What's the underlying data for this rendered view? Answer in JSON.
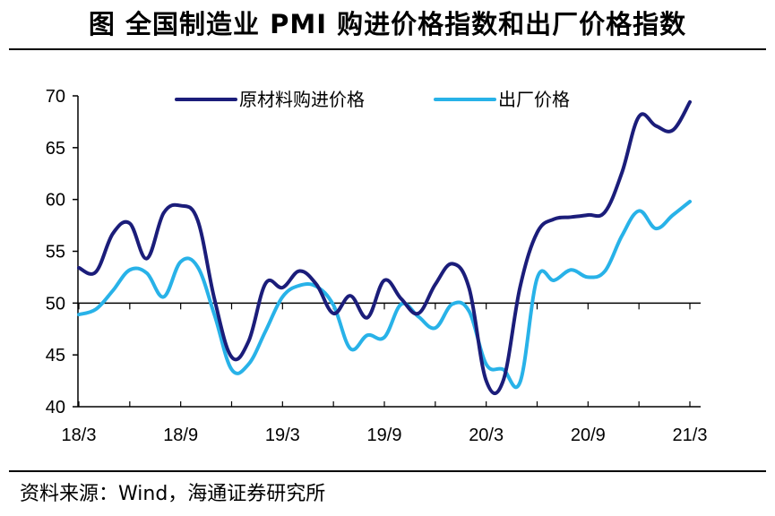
{
  "title": "图  全国制造业 PMI 购进价格指数和出厂价格指数",
  "source": "资料来源：Wind，海通证券研究所",
  "chart_data": {
    "type": "line",
    "title": "图  全国制造业 PMI 购进价格指数和出厂价格指数",
    "xlabel": "",
    "ylabel": "",
    "ylim": [
      40,
      70
    ],
    "yticks": [
      40,
      45,
      50,
      55,
      60,
      65,
      70
    ],
    "x_tick_labels": [
      "18/3",
      "18/9",
      "19/3",
      "19/9",
      "20/3",
      "20/9",
      "21/3"
    ],
    "x": [
      "18/3",
      "18/4",
      "18/5",
      "18/6",
      "18/7",
      "18/8",
      "18/9",
      "18/10",
      "18/11",
      "18/12",
      "19/1",
      "19/2",
      "19/3",
      "19/4",
      "19/5",
      "19/6",
      "19/7",
      "19/8",
      "19/9",
      "19/10",
      "19/11",
      "19/12",
      "20/1",
      "20/2",
      "20/3",
      "20/4",
      "20/5",
      "20/6",
      "20/7",
      "20/8",
      "20/9",
      "20/10",
      "20/11",
      "20/12",
      "21/1",
      "21/2",
      "21/3"
    ],
    "reference_line": 50,
    "legend_position": "top",
    "series": [
      {
        "name": "原材料购进价格",
        "color": "#1b1d7a",
        "values": [
          53.4,
          53.0,
          56.7,
          57.7,
          54.3,
          58.7,
          59.4,
          58.0,
          50.3,
          44.8,
          46.3,
          51.9,
          51.5,
          53.1,
          51.8,
          49.0,
          50.7,
          48.6,
          52.2,
          50.4,
          49.0,
          51.8,
          53.8,
          51.4,
          42.5,
          42.5,
          51.6,
          56.8,
          58.1,
          58.3,
          58.5,
          58.8,
          62.6,
          68.0,
          67.1,
          66.7,
          69.4
        ]
      },
      {
        "name": "出厂价格",
        "color": "#28b2e8",
        "values": [
          48.9,
          49.4,
          51.2,
          53.2,
          52.9,
          50.6,
          54.0,
          53.5,
          48.8,
          43.6,
          44.1,
          47.3,
          50.6,
          51.7,
          51.6,
          49.8,
          45.6,
          46.9,
          46.7,
          49.9,
          48.7,
          47.6,
          49.9,
          49.2,
          44.1,
          43.6,
          42.4,
          52.4,
          52.2,
          53.2,
          52.5,
          53.1,
          56.5,
          58.9,
          57.2,
          58.5,
          59.8
        ]
      }
    ]
  }
}
